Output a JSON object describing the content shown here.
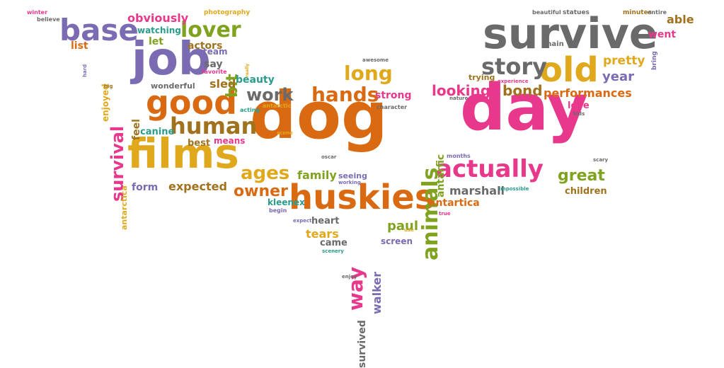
{
  "palette": {
    "orange": "#d96a12",
    "pink": "#e8388c",
    "purple": "#7b6bb3",
    "olive": "#7fa21f",
    "gold": "#e0a81c",
    "brown": "#a0721e",
    "gray": "#6a6a6a",
    "teal": "#2a9c8b",
    "green": "#6ea12a"
  },
  "words": [
    {
      "text": "dog",
      "color": "orange"
    },
    {
      "text": "day",
      "color": "pink"
    },
    {
      "text": "survive",
      "color": "gray"
    },
    {
      "text": "films",
      "color": "gold"
    },
    {
      "text": "huskies",
      "color": "orange"
    },
    {
      "text": "job",
      "color": "purple"
    },
    {
      "text": "good",
      "color": "orange"
    },
    {
      "text": "old",
      "color": "gold"
    },
    {
      "text": "base",
      "color": "purple"
    },
    {
      "text": "actually",
      "color": "pink"
    },
    {
      "text": "human",
      "color": "brown"
    },
    {
      "text": "story",
      "color": "gray"
    },
    {
      "text": "lover",
      "color": "olive"
    },
    {
      "text": "animals",
      "color": "olive"
    },
    {
      "text": "hands",
      "color": "orange"
    },
    {
      "text": "long",
      "color": "gold"
    },
    {
      "text": "survival",
      "color": "pink"
    },
    {
      "text": "way",
      "color": "pink"
    },
    {
      "text": "ages",
      "color": "gold"
    },
    {
      "text": "work",
      "color": "gray"
    },
    {
      "text": "owner",
      "color": "orange"
    },
    {
      "text": "great",
      "color": "olive"
    },
    {
      "text": "bit",
      "color": "olive"
    },
    {
      "text": "bond",
      "color": "brown"
    },
    {
      "text": "looking",
      "color": "pink"
    },
    {
      "text": "pretty",
      "color": "gold"
    },
    {
      "text": "antarfic",
      "color": "olive"
    },
    {
      "text": "obviously",
      "color": "pink"
    },
    {
      "text": "performances",
      "color": "orange"
    },
    {
      "text": "expected",
      "color": "brown"
    },
    {
      "text": "marshall",
      "color": "gray"
    },
    {
      "text": "family",
      "color": "olive"
    },
    {
      "text": "antartica",
      "color": "orange"
    },
    {
      "text": "actors",
      "color": "brown"
    },
    {
      "text": "sled",
      "color": "brown"
    },
    {
      "text": "beauty",
      "color": "teal"
    },
    {
      "text": "year",
      "color": "purple"
    },
    {
      "text": "tears",
      "color": "gold"
    },
    {
      "text": "walker",
      "color": "purple"
    },
    {
      "text": "survived",
      "color": "gray"
    },
    {
      "text": "paul",
      "color": "olive"
    },
    {
      "text": "strong",
      "color": "pink"
    },
    {
      "text": "canine",
      "color": "teal"
    },
    {
      "text": "best",
      "color": "brown"
    },
    {
      "text": "means",
      "color": "pink"
    },
    {
      "text": "form",
      "color": "purple"
    },
    {
      "text": "feel",
      "color": "brown"
    },
    {
      "text": "kleenex",
      "color": "teal"
    },
    {
      "text": "seeing",
      "color": "purple"
    },
    {
      "text": "heart",
      "color": "gray"
    },
    {
      "text": "came",
      "color": "gray"
    },
    {
      "text": "screen",
      "color": "purple"
    },
    {
      "text": "children",
      "color": "brown"
    },
    {
      "text": "love",
      "color": "pink"
    },
    {
      "text": "able",
      "color": "brown"
    },
    {
      "text": "went",
      "color": "pink"
    },
    {
      "text": "say",
      "color": "gray"
    },
    {
      "text": "let",
      "color": "olive"
    },
    {
      "text": "list",
      "color": "orange"
    },
    {
      "text": "team",
      "color": "purple"
    },
    {
      "text": "watching",
      "color": "teal"
    },
    {
      "text": "enjoyed",
      "color": "gold"
    },
    {
      "text": "wonderful",
      "color": "gray"
    },
    {
      "text": "antarctica",
      "color": "gold"
    },
    {
      "text": "trying",
      "color": "brown"
    },
    {
      "text": "main",
      "color": "gray"
    },
    {
      "text": "bring",
      "color": "purple"
    },
    {
      "text": "photography",
      "color": "gold"
    },
    {
      "text": "winter",
      "color": "pink"
    },
    {
      "text": "believe",
      "color": "gray"
    },
    {
      "text": "beautiful",
      "color": "gray"
    },
    {
      "text": "statues",
      "color": "gray"
    },
    {
      "text": "minutes",
      "color": "brown"
    },
    {
      "text": "entire",
      "color": "gray"
    },
    {
      "text": "awesome",
      "color": "gray"
    },
    {
      "text": "favorite",
      "color": "pink"
    },
    {
      "text": "hard",
      "color": "purple"
    },
    {
      "text": "big",
      "color": "brown"
    },
    {
      "text": "acting",
      "color": "teal"
    },
    {
      "text": "antarctic",
      "color": "gold"
    },
    {
      "text": "character",
      "color": "gray"
    },
    {
      "text": "experience",
      "color": "pink"
    },
    {
      "text": "nature",
      "color": "gray"
    },
    {
      "text": "kids",
      "color": "gray"
    },
    {
      "text": "months",
      "color": "purple"
    },
    {
      "text": "scary",
      "color": "gray"
    },
    {
      "text": "scene",
      "color": "gold"
    },
    {
      "text": "oscar",
      "color": "gray"
    },
    {
      "text": "working",
      "color": "purple"
    },
    {
      "text": "impossible",
      "color": "teal"
    },
    {
      "text": "begin",
      "color": "purple"
    },
    {
      "text": "expect",
      "color": "purple"
    },
    {
      "text": "use",
      "color": "gold"
    },
    {
      "text": "true",
      "color": "pink"
    },
    {
      "text": "scenery",
      "color": "teal"
    },
    {
      "text": "enjoy",
      "color": "gray"
    },
    {
      "text": "really",
      "color": "gold"
    }
  ]
}
